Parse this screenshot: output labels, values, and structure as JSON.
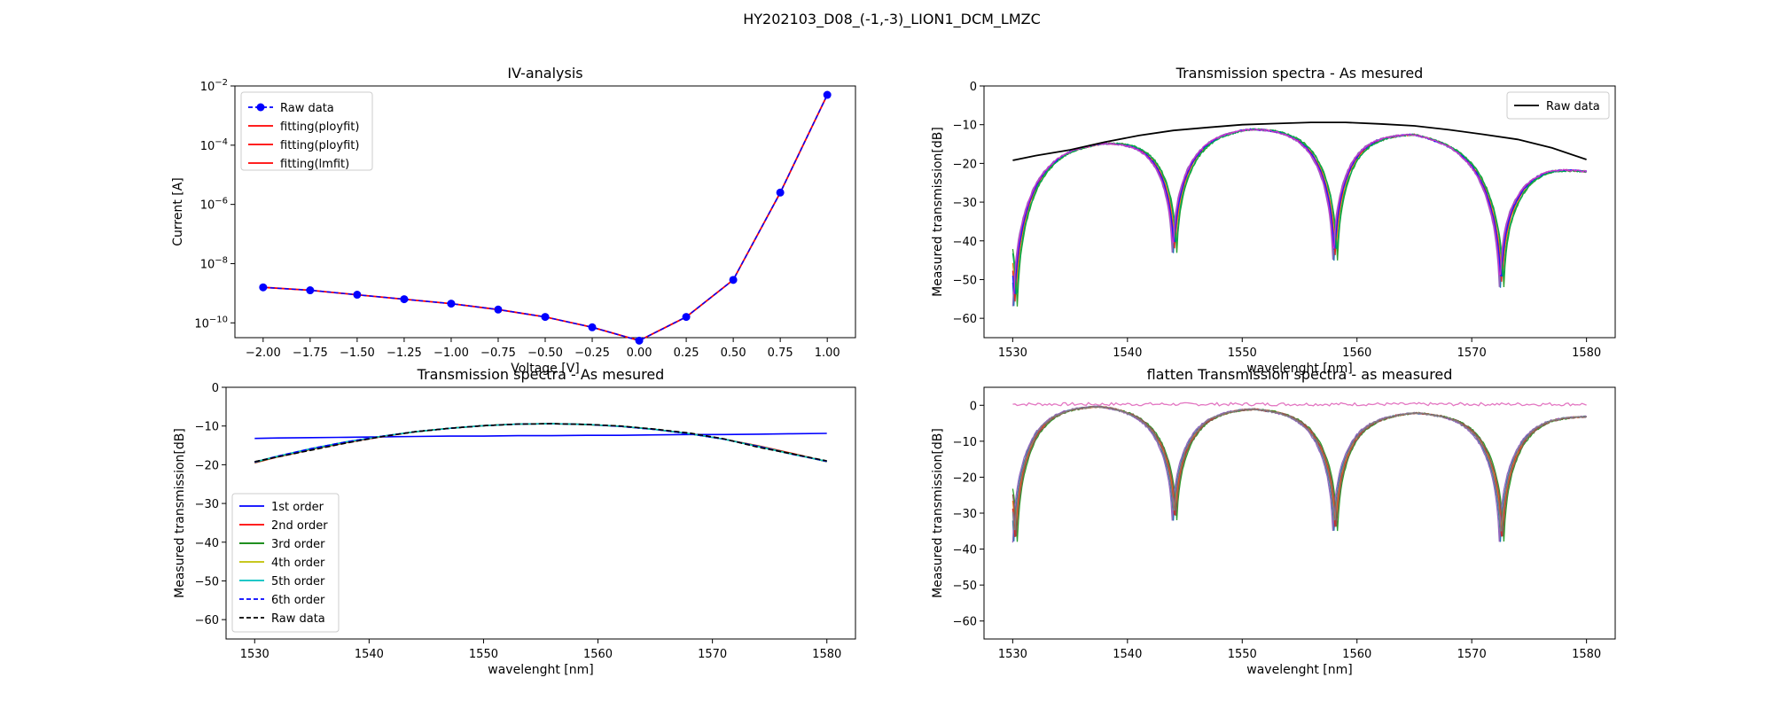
{
  "figure_title": "HY202103_D08_(-1,-3)_LION1_DCM_LMZC",
  "chart_data": [
    {
      "type": "line",
      "title": "IV-analysis",
      "xlabel": "Voltage [V]",
      "ylabel": "Current [A]",
      "yscale": "log",
      "xlim": [
        -2.15,
        1.15
      ],
      "ylim": [
        -10.5,
        -2
      ],
      "x_ticks": [
        -2.0,
        -1.75,
        -1.5,
        -1.25,
        -1.0,
        -0.75,
        -0.5,
        -0.25,
        0.0,
        0.25,
        0.5,
        0.75,
        1.0
      ],
      "x_tick_labels": [
        "−2.00",
        "−1.75",
        "−1.50",
        "−1.25",
        "−1.00",
        "−0.75",
        "−0.50",
        "−0.25",
        "0.00",
        "0.25",
        "0.50",
        "0.75",
        "1.00"
      ],
      "y_ticks": [
        -10,
        -8,
        -6,
        -4,
        -2
      ],
      "y_tick_exponents": [
        "−10",
        "−8",
        "−6",
        "−4",
        "−2"
      ],
      "y_tick_base": "10",
      "legend_position": "upper-left",
      "x": [
        -2.0,
        -1.75,
        -1.5,
        -1.25,
        -1.0,
        -0.75,
        -0.5,
        -0.25,
        0.0,
        0.25,
        0.5,
        0.75,
        1.0
      ],
      "series": [
        {
          "name": "Raw data",
          "style": "dashed-marker",
          "color": "#0000ff",
          "log10_values": [
            -8.8,
            -8.9,
            -9.05,
            -9.2,
            -9.35,
            -9.55,
            -9.8,
            -10.15,
            -10.6,
            -9.8,
            -8.55,
            -5.6,
            -2.3
          ]
        },
        {
          "name": "fitting(ployfit)",
          "style": "solid",
          "color": "#ff0000",
          "log10_values": [
            -8.8,
            -8.9,
            -9.05,
            -9.2,
            -9.35,
            -9.55,
            -9.8,
            -10.15,
            -10.6,
            -9.8,
            -8.55,
            -5.6,
            -2.3
          ]
        },
        {
          "name": "fitting(ployfit)",
          "style": "solid",
          "color": "#ff0000"
        },
        {
          "name": "fitting(lmfit)",
          "style": "solid",
          "color": "#ff0000"
        }
      ]
    },
    {
      "type": "line",
      "title": "Transmission spectra - As mesured",
      "xlabel": "wavelenght [nm]",
      "ylabel": "Measured transmission[dB]",
      "xlim": [
        1527.5,
        1582.5
      ],
      "ylim": [
        -65,
        0
      ],
      "x_ticks": [
        1530,
        1540,
        1550,
        1560,
        1570,
        1580
      ],
      "y_ticks": [
        0,
        -10,
        -20,
        -30,
        -40,
        -50,
        -60
      ],
      "y_tick_labels": [
        "0",
        "−10",
        "−20",
        "−30",
        "−40",
        "−50",
        "−60"
      ],
      "legend_position": "upper-right",
      "series": [
        {
          "name": "Raw data",
          "color": "#000000",
          "x": [
            1530,
            1532,
            1535,
            1538,
            1541,
            1544,
            1547,
            1550,
            1553,
            1556,
            1559,
            1562,
            1565,
            1568,
            1571,
            1574,
            1577,
            1580
          ],
          "values": [
            -19.2,
            -18,
            -16.5,
            -14.5,
            -12.8,
            -11.5,
            -10.7,
            -10,
            -9.7,
            -9.4,
            -9.4,
            -9.8,
            -10.3,
            -11.3,
            -12.5,
            -13.8,
            -16,
            -19
          ]
        },
        {
          "color": "#1f77b4",
          "shift": 0.0
        },
        {
          "color": "#ff7f0e",
          "shift": 0.15
        },
        {
          "color": "#2ca02c",
          "shift": 0.3
        },
        {
          "color": "#d62728",
          "shift": 0.08
        },
        {
          "color": "#9467bd",
          "shift": -0.1
        },
        {
          "color": "#1a1aff",
          "shift": 0.05
        },
        {
          "color": "#00aa55",
          "shift": 0.25
        },
        {
          "color": "#cc33cc",
          "shift": -0.05
        }
      ],
      "envelope": {
        "x": [
          1530,
          1532,
          1535,
          1538,
          1541,
          1544,
          1547,
          1550,
          1553,
          1556,
          1559,
          1562,
          1565,
          1568,
          1571,
          1574,
          1577,
          1580
        ],
        "values": [
          -19.5,
          -17,
          -15,
          -14,
          -13,
          -12.2,
          -11.2,
          -10.5,
          -10.3,
          -10.5,
          -11,
          -11.5,
          -11.8,
          -13.5,
          -16,
          -20,
          -20.2,
          -21.5
        ]
      },
      "dips": [
        {
          "x": 1530.1,
          "depth": -57
        },
        {
          "x": 1544.0,
          "depth": -43
        },
        {
          "x": 1558.0,
          "depth": -45
        },
        {
          "x": 1572.5,
          "depth": -52
        }
      ]
    },
    {
      "type": "line",
      "title": "Transmission spectra - As mesured",
      "xlabel": "wavelenght [nm]",
      "ylabel": "Measured transmission[dB]",
      "xlim": [
        1527.5,
        1582.5
      ],
      "ylim": [
        -65,
        0
      ],
      "x_ticks": [
        1530,
        1540,
        1550,
        1560,
        1570,
        1580
      ],
      "y_ticks": [
        0,
        -10,
        -20,
        -30,
        -40,
        -50,
        -60
      ],
      "y_tick_labels": [
        "0",
        "−10",
        "−20",
        "−30",
        "−40",
        "−50",
        "−60"
      ],
      "legend_position": "lower-left",
      "x": [
        1530,
        1532,
        1535,
        1538,
        1541,
        1544,
        1547,
        1550,
        1553,
        1556,
        1559,
        1562,
        1565,
        1568,
        1571,
        1574,
        1577,
        1580
      ],
      "series": [
        {
          "name": "1st order",
          "color": "#0000ff",
          "style": "solid",
          "values": [
            -13.2,
            -13.1,
            -13.0,
            -12.9,
            -12.8,
            -12.7,
            -12.6,
            -12.6,
            -12.5,
            -12.5,
            -12.4,
            -12.4,
            -12.3,
            -12.2,
            -12.2,
            -12.1,
            -12.0,
            -11.9
          ]
        },
        {
          "name": "2nd order",
          "color": "#ff0000",
          "style": "solid",
          "values": [
            -19.5,
            -18,
            -16,
            -14.3,
            -12.8,
            -11.5,
            -10.6,
            -9.9,
            -9.5,
            -9.4,
            -9.6,
            -10.1,
            -10.9,
            -12.0,
            -13.4,
            -15.1,
            -17.1,
            -19.2
          ]
        },
        {
          "name": "3rd order",
          "color": "#007f00",
          "style": "solid",
          "values": [
            -19.4,
            -17.9,
            -15.9,
            -14.2,
            -12.7,
            -11.5,
            -10.6,
            -9.9,
            -9.5,
            -9.4,
            -9.6,
            -10.1,
            -10.9,
            -12.0,
            -13.4,
            -15.2,
            -17.2,
            -19.2
          ]
        },
        {
          "name": "4th order",
          "color": "#bfbf00",
          "style": "solid",
          "values": [
            -19.3,
            -17.8,
            -15.8,
            -14.1,
            -12.7,
            -11.5,
            -10.6,
            -9.9,
            -9.5,
            -9.4,
            -9.6,
            -10.1,
            -10.9,
            -12.0,
            -13.4,
            -15.3,
            -17.3,
            -19.1
          ]
        },
        {
          "name": "5th order",
          "color": "#00bfbf",
          "style": "solid",
          "values": [
            -19.3,
            -17.8,
            -15.8,
            -14.1,
            -12.7,
            -11.5,
            -10.6,
            -9.9,
            -9.5,
            -9.4,
            -9.6,
            -10.1,
            -10.9,
            -12.0,
            -13.4,
            -15.3,
            -17.3,
            -19.1
          ]
        },
        {
          "name": "6th order",
          "color": "#0000ff",
          "style": "dashed",
          "values": [
            -19.3,
            -17.8,
            -15.8,
            -14.1,
            -12.7,
            -11.5,
            -10.6,
            -9.9,
            -9.5,
            -9.4,
            -9.6,
            -10.1,
            -10.9,
            -12.0,
            -13.4,
            -15.3,
            -17.3,
            -19.1
          ]
        },
        {
          "name": "Raw data",
          "color": "#000000",
          "style": "dashed",
          "values": [
            -19.2,
            -18,
            -16.2,
            -14.4,
            -12.8,
            -11.5,
            -10.6,
            -9.9,
            -9.5,
            -9.4,
            -9.6,
            -10.0,
            -10.8,
            -11.8,
            -13.3,
            -15.5,
            -17.2,
            -19.0
          ]
        }
      ]
    },
    {
      "type": "line",
      "title": "flatten Transmission spectra - as measured",
      "xlabel": "wavelenght [nm]",
      "ylabel": "Measured transmission[dB]",
      "xlim": [
        1527.5,
        1582.5
      ],
      "ylim": [
        -65,
        5
      ],
      "x_ticks": [
        1530,
        1540,
        1550,
        1560,
        1570,
        1580
      ],
      "y_ticks": [
        0,
        -10,
        -20,
        -30,
        -40,
        -50,
        -60
      ],
      "y_tick_labels": [
        "0",
        "−10",
        "−20",
        "−30",
        "−40",
        "−50",
        "−60"
      ],
      "series": [
        {
          "color": "#e377c2",
          "kind": "flat",
          "values_constant": 0.3
        },
        {
          "color": "#1f77b4",
          "shift": 0.0
        },
        {
          "color": "#ff7f0e",
          "shift": 0.15
        },
        {
          "color": "#2ca02c",
          "shift": 0.3
        },
        {
          "color": "#d62728",
          "shift": 0.08
        },
        {
          "color": "#9467bd",
          "shift": -0.1
        },
        {
          "color": "#8c564b",
          "shift": 0.22
        },
        {
          "color": "#7f7f7f",
          "shift": 0.05
        }
      ],
      "envelope": {
        "x": [
          1530,
          1532,
          1535,
          1538,
          1541,
          1544,
          1547,
          1550,
          1553,
          1556,
          1559,
          1562,
          1565,
          1568,
          1571,
          1574,
          1577,
          1580
        ],
        "values": [
          -0.5,
          0.3,
          0.5,
          0.4,
          -0.2,
          -0.8,
          -0.5,
          -0.3,
          -0.5,
          -0.9,
          -1.5,
          -1.7,
          -1.4,
          -1.7,
          -2.0,
          -2.5,
          -2.2,
          -2.5
        ]
      },
      "dips": [
        {
          "x": 1530.1,
          "depth": -38
        },
        {
          "x": 1544.0,
          "depth": -32
        },
        {
          "x": 1558.0,
          "depth": -35
        },
        {
          "x": 1572.5,
          "depth": -38
        }
      ]
    }
  ]
}
